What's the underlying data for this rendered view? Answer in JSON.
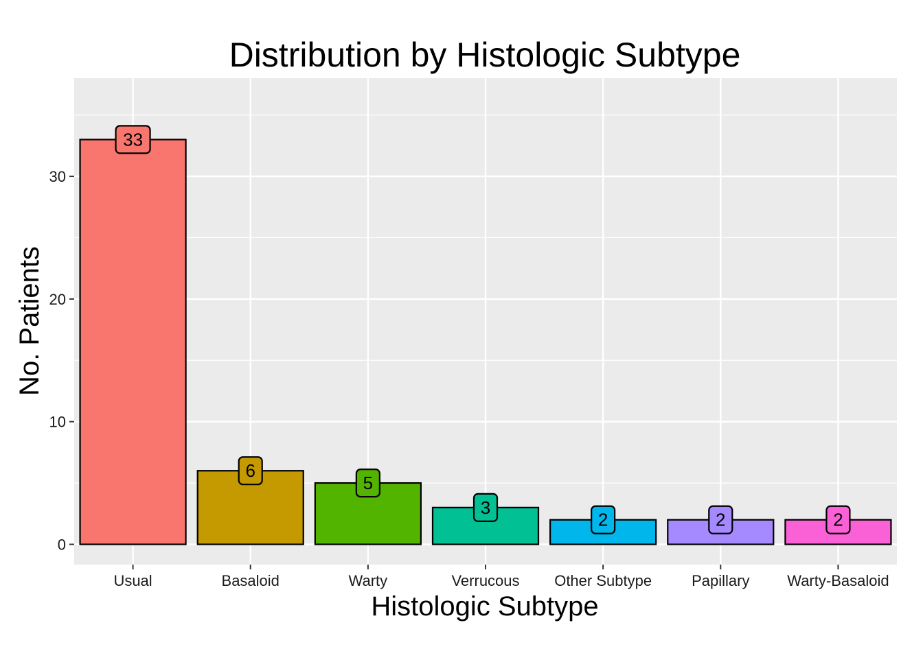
{
  "chart_data": {
    "type": "bar",
    "title": "Distribution by Histologic Subtype",
    "xlabel": "Histologic Subtype",
    "ylabel": "No. Patients",
    "categories": [
      "Usual",
      "Basaloid",
      "Warty",
      "Verrucous",
      "Other Subtype",
      "Papillary",
      "Warty-Basaloid"
    ],
    "values": [
      33,
      6,
      5,
      3,
      2,
      2,
      2
    ],
    "colors": [
      "#F8766D",
      "#C49A00",
      "#53B400",
      "#00C094",
      "#00B6EB",
      "#A58AFF",
      "#FB61D7"
    ],
    "ylim": [
      -1.65,
      38
    ],
    "yticks": [
      0,
      10,
      20,
      30
    ],
    "grid": true,
    "legend": "none",
    "panel_background": "#EBEBEB",
    "data_labels": true
  }
}
